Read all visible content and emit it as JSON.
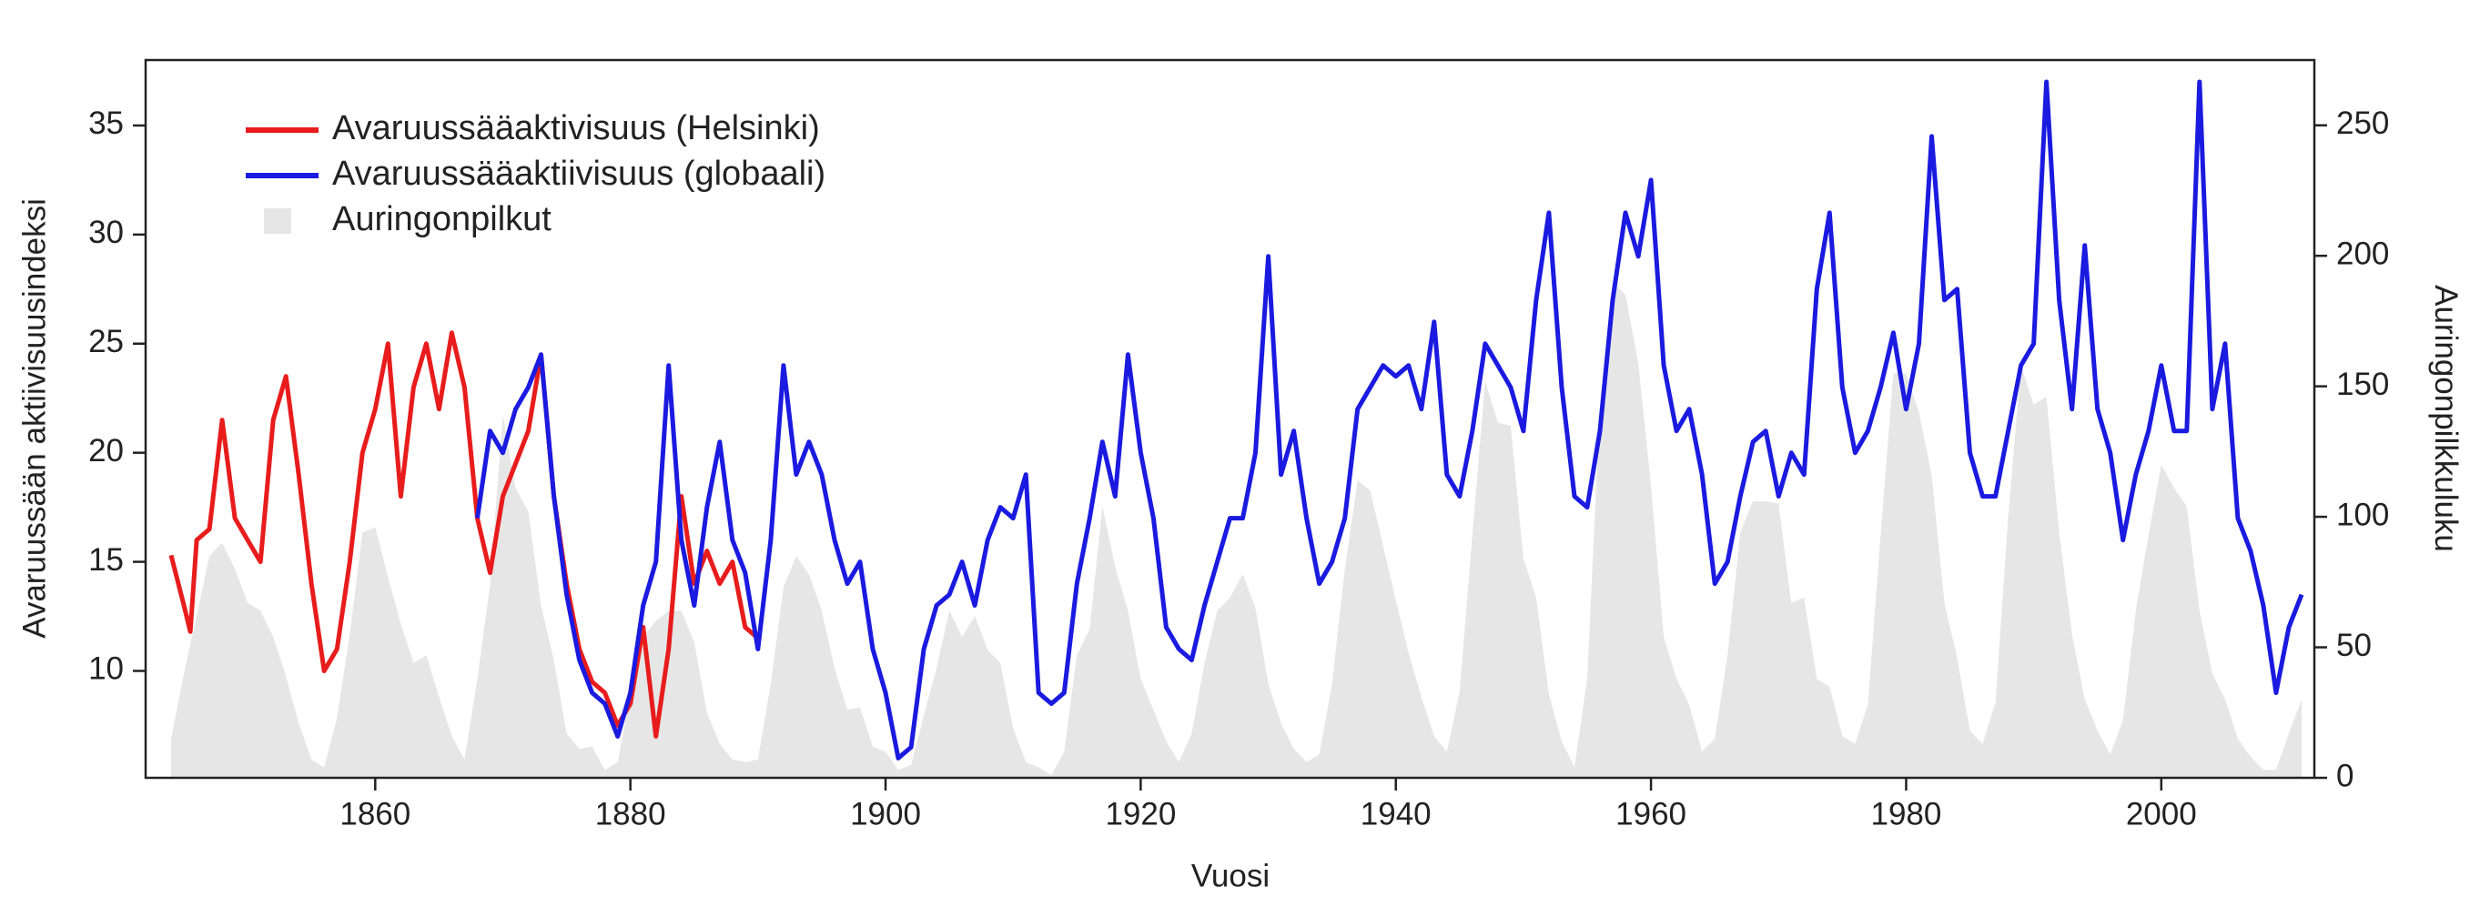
{
  "chart_data": {
    "type": "line",
    "xlabel": "Vuosi",
    "ylabel": "Avaruussään aktiivisuusindeksi",
    "y2label": "Auringonpilkkuluku",
    "xlim": [
      1842,
      2012
    ],
    "xticks": [
      1860,
      1880,
      1900,
      1920,
      1940,
      1960,
      1980,
      2000
    ],
    "ylim": [
      5.1,
      38
    ],
    "yticks": [
      10,
      15,
      20,
      25,
      30,
      35
    ],
    "y2lim": [
      0,
      275
    ],
    "y2ticks": [
      0,
      50,
      100,
      150,
      200,
      250
    ],
    "legend": "upper-left",
    "series": [
      {
        "name": "Auringonpilkut",
        "type": "area",
        "axis": "y2",
        "color": "#e6e6e6",
        "x": [
          1844,
          1845,
          1846,
          1847,
          1848,
          1849,
          1850,
          1851,
          1852,
          1853,
          1854,
          1855,
          1856,
          1857,
          1858,
          1859,
          1860,
          1861,
          1862,
          1863,
          1864,
          1865,
          1866,
          1867,
          1868,
          1869,
          1870,
          1871,
          1872,
          1873,
          1874,
          1875,
          1876,
          1877,
          1878,
          1879,
          1880,
          1881,
          1882,
          1883,
          1884,
          1885,
          1886,
          1887,
          1888,
          1889,
          1890,
          1891,
          1892,
          1893,
          1894,
          1895,
          1896,
          1897,
          1898,
          1899,
          1900,
          1901,
          1902,
          1903,
          1904,
          1905,
          1906,
          1907,
          1908,
          1909,
          1910,
          1911,
          1912,
          1913,
          1914,
          1915,
          1916,
          1917,
          1918,
          1919,
          1920,
          1921,
          1922,
          1923,
          1924,
          1925,
          1926,
          1927,
          1928,
          1929,
          1930,
          1931,
          1932,
          1933,
          1934,
          1935,
          1936,
          1937,
          1938,
          1939,
          1940,
          1941,
          1942,
          1943,
          1944,
          1945,
          1946,
          1947,
          1948,
          1949,
          1950,
          1951,
          1952,
          1953,
          1954,
          1955,
          1956,
          1957,
          1958,
          1959,
          1960,
          1961,
          1962,
          1963,
          1964,
          1965,
          1966,
          1967,
          1968,
          1969,
          1970,
          1971,
          1972,
          1973,
          1974,
          1975,
          1976,
          1977,
          1978,
          1979,
          1980,
          1981,
          1982,
          1983,
          1984,
          1985,
          1986,
          1987,
          1988,
          1989,
          1990,
          1991,
          1992,
          1993,
          1994,
          1995,
          1996,
          1997,
          1998,
          1999,
          2000,
          2001,
          2002,
          2003,
          2004,
          2005,
          2006,
          2007,
          2008,
          2009,
          2010,
          2011
        ],
        "values": [
          15,
          40,
          62,
          85,
          90,
          80,
          67,
          64,
          54,
          39,
          21,
          7,
          4,
          23,
          55,
          94,
          96,
          77,
          59,
          44,
          47,
          31,
          16,
          7,
          38,
          74,
          139,
          111,
          102,
          66,
          45,
          17,
          11,
          12,
          3,
          6,
          32,
          54,
          60,
          64,
          64,
          52,
          25,
          13,
          7,
          6,
          7,
          36,
          73,
          85,
          78,
          64,
          42,
          26,
          27,
          12,
          10,
          3,
          5,
          24,
          42,
          64,
          54,
          62,
          49,
          44,
          19,
          6,
          4,
          1,
          10,
          47,
          57,
          104,
          81,
          64,
          38,
          26,
          14,
          6,
          17,
          44,
          64,
          69,
          78,
          65,
          36,
          21,
          11,
          6,
          9,
          36,
          80,
          114,
          110,
          89,
          68,
          48,
          31,
          16,
          10,
          33,
          93,
          152,
          136,
          135,
          84,
          69,
          32,
          14,
          4,
          38,
          142,
          190,
          185,
          159,
          112,
          54,
          38,
          28,
          10,
          15,
          47,
          94,
          106,
          106,
          105,
          67,
          69,
          38,
          35,
          16,
          13,
          28,
          93,
          155,
          155,
          140,
          116,
          67,
          46,
          18,
          13,
          29,
          100,
          158,
          143,
          146,
          94,
          55,
          30,
          18,
          9,
          22,
          64,
          93,
          120,
          111,
          104,
          64,
          40,
          30,
          15,
          8,
          3,
          3,
          17,
          30
        ]
      },
      {
        "name": "Avaruussääaktivisuus (Helsinki)",
        "type": "line",
        "color": "#e81c1c",
        "x": [
          1844,
          1845,
          1845.5,
          1846,
          1847,
          1848,
          1849,
          1850,
          1851,
          1852,
          1853,
          1854,
          1855,
          1856,
          1857,
          1858,
          1859,
          1860,
          1861,
          1862,
          1863,
          1864,
          1865,
          1866,
          1867,
          1868,
          1869,
          1870,
          1871,
          1872,
          1873,
          1874,
          1875,
          1876,
          1877,
          1878,
          1879,
          1880,
          1881,
          1882,
          1883,
          1884,
          1885,
          1886,
          1887,
          1888,
          1889,
          1890
        ],
        "values": [
          15.3,
          13,
          11.8,
          16,
          16.5,
          21.5,
          17,
          16,
          15,
          21.5,
          23.5,
          19,
          14,
          10,
          11,
          15,
          20,
          22,
          25,
          18,
          23,
          25,
          22,
          25.5,
          23,
          17,
          14.5,
          18,
          19.5,
          21,
          24.5,
          18,
          14,
          11,
          9.5,
          9,
          7.5,
          8.5,
          12,
          7,
          11,
          18,
          14,
          15.5,
          14,
          15,
          12,
          11.5
        ]
      },
      {
        "name": "Avaruussääaktiivisuus (globaali)",
        "type": "line",
        "color": "#1a1ae0",
        "x": [
          1868,
          1869,
          1870,
          1871,
          1872,
          1873,
          1874,
          1875,
          1876,
          1877,
          1878,
          1879,
          1880,
          1881,
          1882,
          1883,
          1884,
          1885,
          1886,
          1887,
          1888,
          1889,
          1890,
          1891,
          1892,
          1893,
          1894,
          1895,
          1896,
          1897,
          1898,
          1899,
          1900,
          1901,
          1902,
          1903,
          1904,
          1905,
          1906,
          1907,
          1908,
          1909,
          1910,
          1911,
          1912,
          1913,
          1914,
          1915,
          1916,
          1917,
          1918,
          1919,
          1920,
          1921,
          1922,
          1923,
          1924,
          1925,
          1926,
          1927,
          1928,
          1929,
          1930,
          1931,
          1932,
          1933,
          1934,
          1935,
          1936,
          1937,
          1938,
          1939,
          1940,
          1941,
          1942,
          1943,
          1944,
          1945,
          1946,
          1947,
          1948,
          1949,
          1950,
          1951,
          1952,
          1953,
          1954,
          1955,
          1956,
          1957,
          1958,
          1959,
          1960,
          1961,
          1962,
          1963,
          1964,
          1965,
          1966,
          1967,
          1968,
          1969,
          1970,
          1971,
          1972,
          1973,
          1974,
          1975,
          1976,
          1977,
          1978,
          1979,
          1980,
          1981,
          1982,
          1983,
          1984,
          1985,
          1986,
          1987,
          1988,
          1989,
          1990,
          1991,
          1992,
          1993,
          1994,
          1995,
          1996,
          1997,
          1998,
          1999,
          2000,
          2001,
          2002,
          2003,
          2004,
          2005,
          2006,
          2007,
          2008,
          2009,
          2010,
          2011
        ],
        "values": [
          17,
          21,
          20,
          22,
          23,
          24.5,
          18,
          13.5,
          10.5,
          9,
          8.5,
          7,
          9,
          13,
          15,
          24,
          16,
          13,
          17.5,
          20.5,
          16,
          14.5,
          11,
          16,
          24,
          19,
          20.5,
          19,
          16,
          14,
          15,
          11,
          9,
          6,
          6.5,
          11,
          13,
          13.5,
          15,
          13,
          16,
          17.5,
          17,
          19,
          9,
          8.5,
          9,
          14,
          17,
          20.5,
          18,
          24.5,
          20,
          17,
          12,
          11,
          10.5,
          13,
          15,
          17,
          17,
          20,
          29,
          19,
          21,
          17,
          14,
          15,
          17,
          22,
          23,
          24,
          23.5,
          24,
          22,
          26,
          19,
          18,
          21,
          25,
          24,
          23,
          21,
          27,
          31,
          23,
          18,
          17.5,
          21,
          27,
          31,
          29,
          32.5,
          24,
          21,
          22,
          19,
          14,
          15,
          18,
          20.5,
          21,
          18,
          20,
          19,
          27.5,
          31,
          23,
          20,
          21,
          23,
          25.5,
          22,
          25,
          34.5,
          27,
          27.5,
          20,
          18,
          18,
          21,
          24,
          25,
          37,
          27,
          22,
          29.5,
          22,
          20,
          16,
          19,
          21,
          24,
          21,
          21,
          37,
          22,
          25,
          17,
          15.5,
          13,
          9,
          12,
          13.5
        ]
      }
    ]
  }
}
